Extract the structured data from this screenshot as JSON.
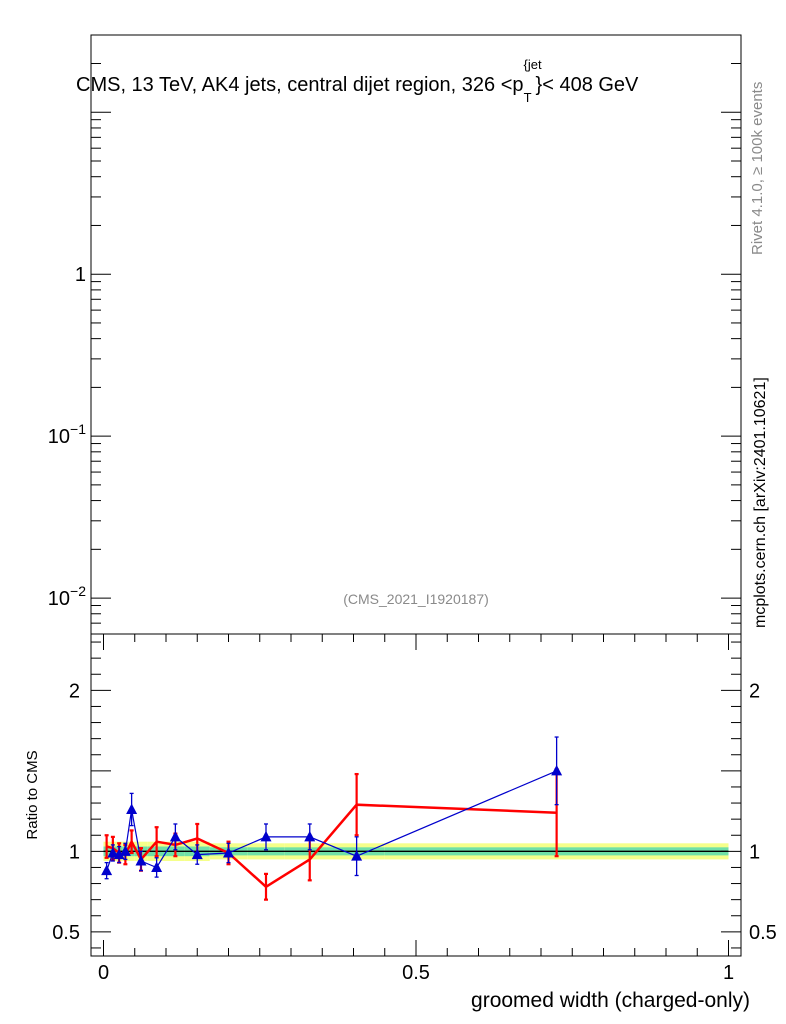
{
  "chart_data": [
    {
      "type": "line",
      "panel": "main",
      "title": "CMS, 13 TeV, AK4 jets, central dijet region, 326 <p",
      "title_sup": "{jet",
      "title_sub": "T",
      "title_tail": "}< 408 GeV",
      "y_scale": "log",
      "ylim": [
        0.006,
        30
      ],
      "y_ticks": [
        {
          "value": 1,
          "base": "1",
          "exp": ""
        },
        {
          "value": 0.1,
          "base": "10",
          "exp": "−1"
        },
        {
          "value": 0.01,
          "base": "10",
          "exp": "−2"
        }
      ],
      "annotation": "(CMS_2021_I1920187)",
      "series": []
    },
    {
      "type": "line",
      "panel": "ratio",
      "xlabel": "groomed width (charged-only)",
      "ylabel": "Ratio to CMS",
      "xlim": [
        -0.02,
        1.02
      ],
      "ylim": [
        0.35,
        2.35
      ],
      "x_ticks": [
        "0",
        "0.5",
        "1"
      ],
      "x_tick_values": [
        0,
        0.5,
        1
      ],
      "y_ticks": [
        "0.5",
        "1",
        "2"
      ],
      "y_tick_values": [
        0.5,
        1,
        2
      ],
      "reference_line": 1,
      "bands": {
        "edges": [
          0,
          0.01,
          0.02,
          0.03,
          0.04,
          0.05,
          0.07,
          0.1,
          0.13,
          0.17,
          0.23,
          0.29,
          0.36,
          0.45,
          1.0
        ],
        "inner": [
          0.03,
          0.03,
          0.03,
          0.03,
          0.03,
          0.03,
          0.03,
          0.03,
          0.03,
          0.025,
          0.025,
          0.025,
          0.025,
          0.025
        ],
        "outer": [
          0.06,
          0.06,
          0.06,
          0.06,
          0.06,
          0.06,
          0.06,
          0.06,
          0.06,
          0.05,
          0.05,
          0.05,
          0.05,
          0.05
        ],
        "inner_color": "#6fe0a8",
        "outer_color": "#f5ff8a"
      },
      "series": [
        {
          "color": "#ff0000",
          "line_width": 2.5,
          "marker": "bar",
          "x": [
            0.005,
            0.015,
            0.025,
            0.035,
            0.045,
            0.06,
            0.085,
            0.115,
            0.15,
            0.2,
            0.26,
            0.33,
            0.405,
            0.725
          ],
          "xerr": [
            0.005,
            0.005,
            0.005,
            0.005,
            0.005,
            0.01,
            0.015,
            0.015,
            0.02,
            0.03,
            0.03,
            0.04,
            0.045,
            0.275
          ],
          "y": [
            1.03,
            1.02,
            0.99,
            0.98,
            1.06,
            0.95,
            1.06,
            1.04,
            1.08,
            0.99,
            0.78,
            0.95,
            1.29,
            1.24
          ],
          "yerr": [
            0.07,
            0.07,
            0.06,
            0.06,
            0.07,
            0.07,
            0.09,
            0.07,
            0.09,
            0.07,
            0.08,
            0.13,
            0.19,
            0.27
          ]
        },
        {
          "color": "#0000cc",
          "line_width": 1.2,
          "marker": "triangle",
          "x": [
            0.005,
            0.015,
            0.025,
            0.035,
            0.045,
            0.06,
            0.085,
            0.115,
            0.15,
            0.2,
            0.26,
            0.33,
            0.405,
            0.725
          ],
          "y": [
            0.88,
            0.99,
            0.98,
            1.0,
            1.26,
            0.94,
            0.9,
            1.09,
            0.98,
            0.99,
            1.09,
            1.09,
            0.97,
            1.5
          ],
          "yerr": [
            0.05,
            0.05,
            0.05,
            0.05,
            0.1,
            0.06,
            0.06,
            0.08,
            0.06,
            0.06,
            0.08,
            0.08,
            0.12,
            0.21
          ]
        }
      ]
    }
  ],
  "side_labels": {
    "rivet": "Rivet 4.1.0, ≥ 100k events",
    "mcplots": "mcplots.cern.ch [arXiv:2401.10621]"
  }
}
